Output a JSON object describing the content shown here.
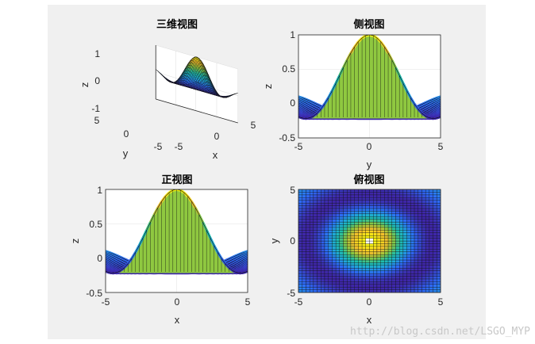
{
  "watermark": "http://blog.csdn.net/LSGO_MYP",
  "chart_data": [
    {
      "type": "surface",
      "title": "三维视图",
      "view": "3d",
      "xlabel": "x",
      "ylabel": "y",
      "zlabel": "z",
      "xlim": [
        -5,
        5
      ],
      "ylim": [
        -5,
        5
      ],
      "zlim": [
        -1,
        1
      ],
      "xticks": [
        "-5",
        "0",
        "5"
      ],
      "yticks": [
        "-5",
        "0",
        "5"
      ],
      "zticks": [
        "-1",
        "0",
        "1"
      ],
      "function": "z = sin(r)/r, r = sqrt(x^2 + y^2)",
      "colormap": [
        "#3e26a8",
        "#2d6bf7",
        "#1fa8db",
        "#1fc0a8",
        "#8cc841",
        "#f5bf2c",
        "#f9fb0e"
      ]
    },
    {
      "type": "surface",
      "title": "侧视图",
      "view": "side",
      "xlabel": "y",
      "ylabel": "z",
      "xlim": [
        -5,
        5
      ],
      "ylim": [
        -0.5,
        1
      ],
      "xticks": [
        "-5",
        "0",
        "5"
      ],
      "yticks": [
        "-0.5",
        "0",
        "0.5",
        "1"
      ]
    },
    {
      "type": "surface",
      "title": "正视图",
      "view": "front",
      "xlabel": "x",
      "ylabel": "z",
      "xlim": [
        -5,
        5
      ],
      "ylim": [
        -0.5,
        1
      ],
      "xticks": [
        "-5",
        "0",
        "5"
      ],
      "yticks": [
        "-0.5",
        "0",
        "0.5",
        "1"
      ]
    },
    {
      "type": "heatmap",
      "title": "俯视图",
      "view": "top",
      "xlabel": "x",
      "ylabel": "y",
      "xlim": [
        -5,
        5
      ],
      "ylim": [
        -5,
        5
      ],
      "xticks": [
        "-5",
        "0",
        "5"
      ],
      "yticks": [
        "-5",
        "0",
        "5"
      ]
    }
  ]
}
